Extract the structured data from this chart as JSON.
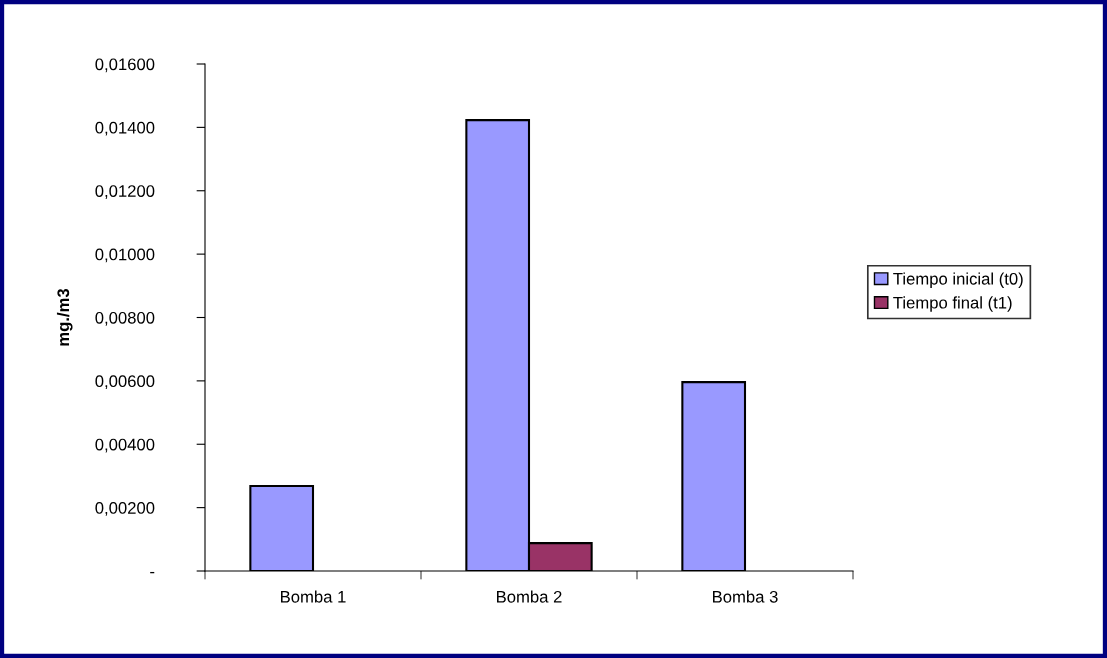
{
  "chart_data": {
    "type": "bar",
    "ylabel": "mg./m3",
    "categories": [
      "Bomba 1",
      "Bomba 2",
      "Bomba 3"
    ],
    "series": [
      {
        "name": "Tiempo inicial (t0)",
        "color": "#9999ff",
        "values": [
          0.00268,
          0.01423,
          0.00596
        ]
      },
      {
        "name": "Tiempo final (t1)",
        "color": "#993366",
        "values": [
          null,
          0.00088,
          null
        ]
      }
    ],
    "ylim": [
      0,
      0.016
    ],
    "yticks": [
      {
        "value": 0,
        "label": "-"
      },
      {
        "value": 0.002,
        "label": "0,00200"
      },
      {
        "value": 0.004,
        "label": "0,00400"
      },
      {
        "value": 0.006,
        "label": "0,00600"
      },
      {
        "value": 0.008,
        "label": "0,00800"
      },
      {
        "value": 0.01,
        "label": "0,01000"
      },
      {
        "value": 0.012,
        "label": "0,01200"
      },
      {
        "value": 0.014,
        "label": "0,01400"
      },
      {
        "value": 0.016,
        "label": "0,01600"
      }
    ],
    "legend": "right",
    "grid": false
  }
}
